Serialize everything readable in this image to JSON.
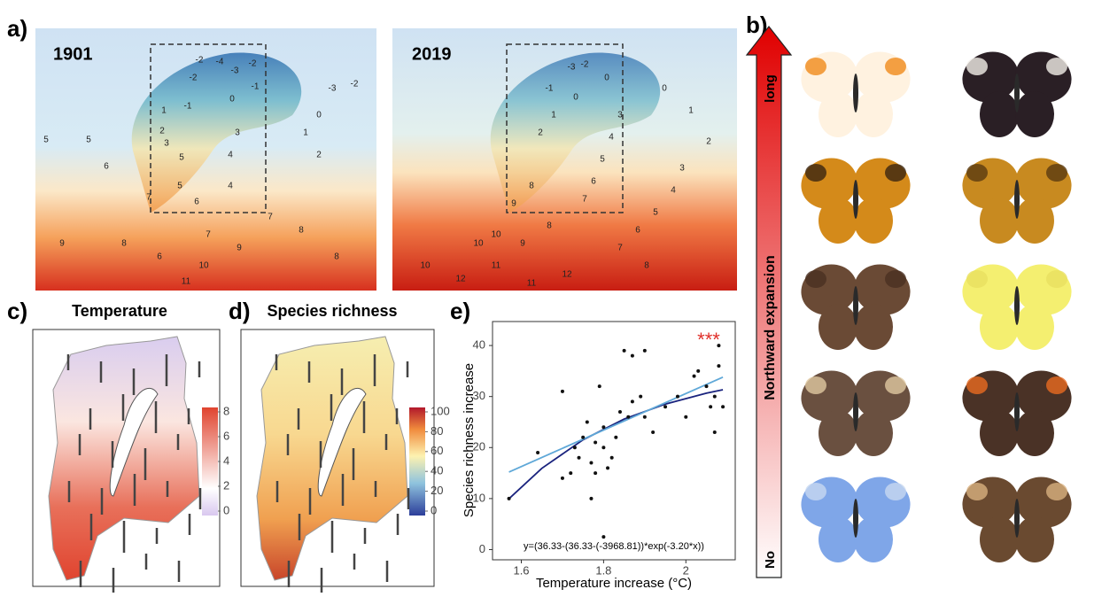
{
  "panel_a": {
    "label": "a)",
    "maps": [
      {
        "year": "1901",
        "contour_labels": [
          "-2",
          "-4",
          "-3",
          "-2",
          "-1",
          "0",
          "-2",
          "-1",
          "1",
          "2",
          "3",
          "-3",
          "-2",
          "0",
          "1",
          "2",
          "3",
          "4",
          "5",
          "5",
          "6",
          "7",
          "5",
          "6",
          "4",
          "7",
          "8",
          "9",
          "10",
          "11",
          "8",
          "6",
          "5",
          "9",
          "7",
          "8"
        ]
      },
      {
        "year": "2019",
        "contour_labels": [
          "-3",
          "-2",
          "0",
          "-1",
          "0",
          "1",
          "2",
          "3",
          "4",
          "5",
          "6",
          "7",
          "8",
          "9",
          "10",
          "0",
          "1",
          "2",
          "3",
          "4",
          "5",
          "6",
          "7",
          "8",
          "10",
          "11",
          "12",
          "10",
          "12",
          "11",
          "9",
          "8"
        ]
      }
    ]
  },
  "panel_b": {
    "label": "b)",
    "arrow_top": "long",
    "arrow_title": "Northward expansion",
    "arrow_bottom": "No"
  },
  "panel_c": {
    "label": "c)",
    "title": "Temperature",
    "colorbar_ticks": [
      0,
      2,
      4,
      6,
      8
    ]
  },
  "panel_d": {
    "label": "d)",
    "title": "Species richness",
    "colorbar_ticks": [
      0,
      20,
      40,
      60,
      80,
      100
    ]
  },
  "panel_e": {
    "label": "e)"
  },
  "chart_data": {
    "type": "scatter",
    "xlabel": "Temperature increase (°C)",
    "ylabel": "Species richness increase",
    "annotation": "***",
    "equation": "y=(36.33-(36.33-(-3968.81))*exp(-3.20*x))",
    "x": [
      1.57,
      1.64,
      1.7,
      1.7,
      1.72,
      1.73,
      1.74,
      1.75,
      1.76,
      1.77,
      1.77,
      1.78,
      1.78,
      1.79,
      1.8,
      1.8,
      1.8,
      1.81,
      1.82,
      1.83,
      1.84,
      1.85,
      1.86,
      1.87,
      1.87,
      1.89,
      1.9,
      1.9,
      1.92,
      1.95,
      1.98,
      2.0,
      2.02,
      2.03,
      2.05,
      2.06,
      2.07,
      2.07,
      2.08,
      2.08,
      2.09
    ],
    "values": [
      10,
      19,
      31,
      14,
      15,
      20,
      18,
      22,
      25,
      10,
      17,
      15,
      21,
      32,
      2.5,
      24,
      20,
      16,
      18,
      22,
      27,
      39,
      26,
      38,
      29,
      30,
      39,
      26,
      23,
      28,
      30,
      26,
      34,
      35,
      32,
      28,
      30,
      23,
      36,
      40,
      28
    ],
    "color": "#111111",
    "fits": [
      {
        "color": "#1a237e",
        "x": [
          1.57,
          1.65,
          1.75,
          1.85,
          1.95,
          2.05,
          2.09
        ],
        "values": [
          9.97,
          15.94,
          21.52,
          25.58,
          28.52,
          30.66,
          31.34
        ]
      },
      {
        "color": "#5fa8d8",
        "x": [
          1.57,
          2.09
        ],
        "values": [
          15.2,
          33.8
        ]
      }
    ],
    "xlim": [
      1.53,
      2.12
    ],
    "ylim": [
      -2,
      44.7
    ],
    "xticks": [
      1.6,
      1.8,
      2.0
    ],
    "yticks": [
      0,
      10,
      20,
      30,
      40
    ]
  }
}
